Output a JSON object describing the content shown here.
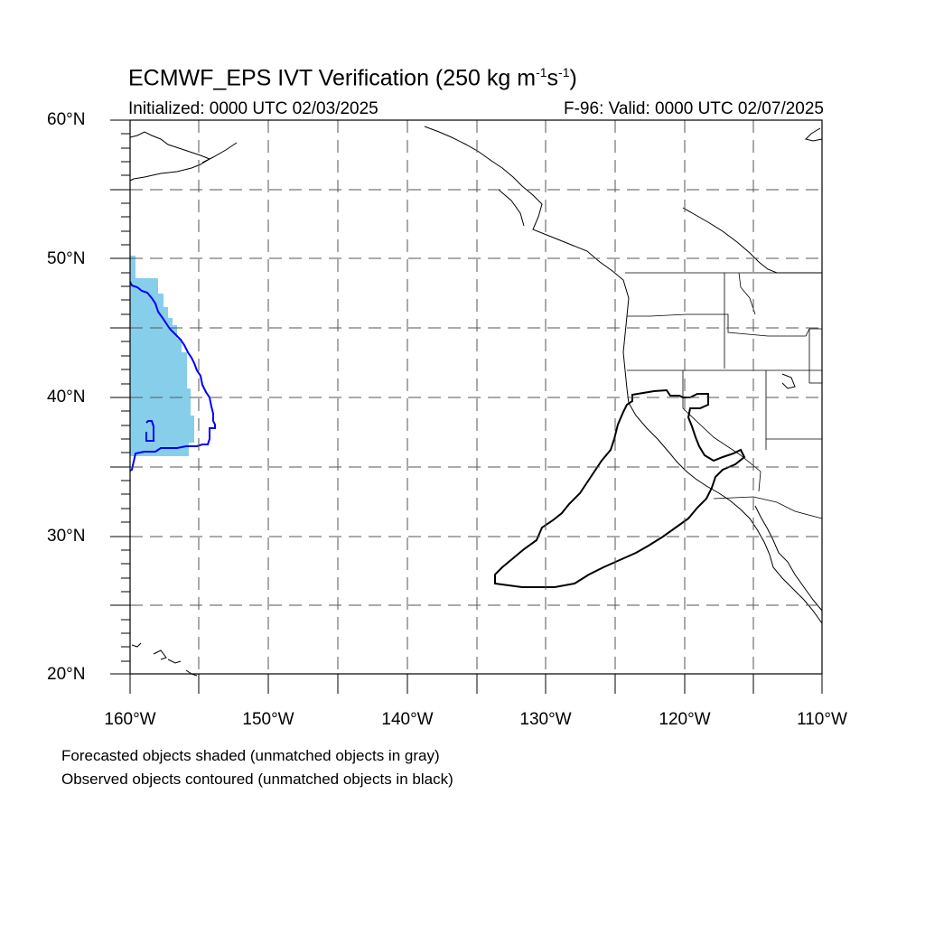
{
  "title": {
    "main": "ECMWF_EPS IVT Verification (250 kg m",
    "sup1": "-1",
    "mid": "s",
    "sup2": "-1",
    "end": ")"
  },
  "initialized": "Initialized: 0000 UTC 02/03/2025",
  "valid": "F-96: Valid: 0000 UTC 02/07/2025",
  "lat_labels": [
    "60°N",
    "50°N",
    "40°N",
    "30°N",
    "20°N"
  ],
  "lon_labels": [
    "160°W",
    "150°W",
    "140°W",
    "130°W",
    "120°W",
    "110°W"
  ],
  "legend": {
    "forecast": "Forecasted objects shaded (unmatched objects in gray)",
    "observed": "Observed objects contoured (unmatched objects in black)"
  },
  "map": {
    "lon_range": [
      -160,
      -110
    ],
    "lat_range": [
      20,
      60
    ],
    "forecast_fill_color": "#87ceeb",
    "matched_contour_color": "#0000ff",
    "unmatched_contour_color": "#000000"
  }
}
